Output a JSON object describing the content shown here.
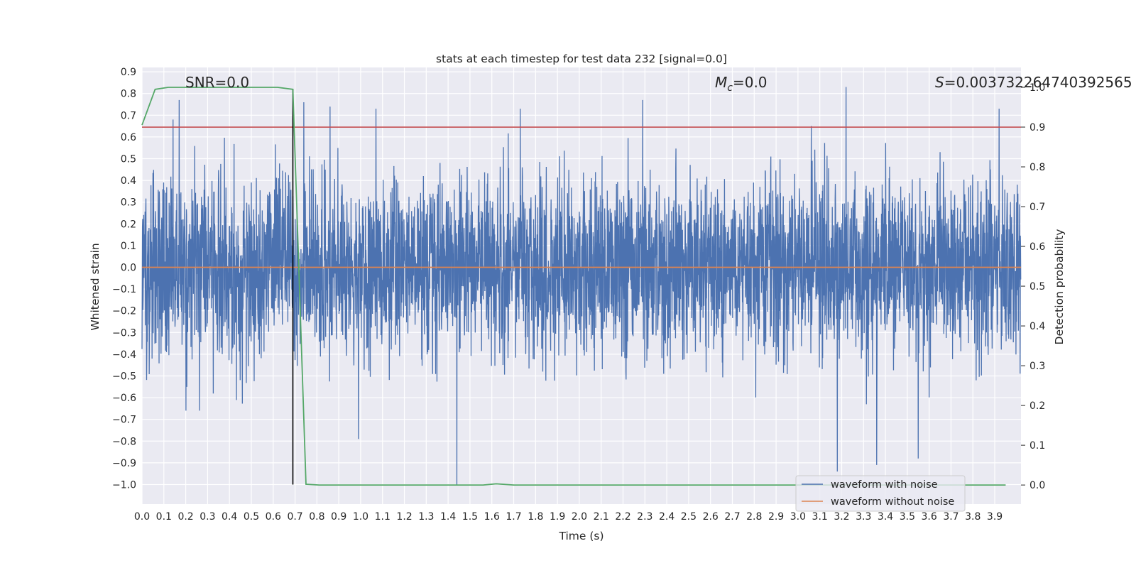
{
  "chart_data": {
    "type": "line",
    "title": "stats at each timestep for test data 232 [signal=0.0]",
    "xlabel": "Time (s)",
    "ylabel": "Whitened strain",
    "y2label": "Detection probability",
    "xlim": [
      0.0,
      4.02
    ],
    "ylim": [
      -1.09,
      0.92
    ],
    "y2lim": [
      -0.048,
      1.05
    ],
    "x_ticks": [
      "0.0",
      "0.1",
      "0.2",
      "0.3",
      "0.4",
      "0.5",
      "0.6",
      "0.7",
      "0.8",
      "0.9",
      "1.0",
      "1.1",
      "1.2",
      "1.3",
      "1.4",
      "1.5",
      "1.6",
      "1.7",
      "1.8",
      "1.9",
      "2.0",
      "2.1",
      "2.2",
      "2.3",
      "2.4",
      "2.5",
      "2.6",
      "2.7",
      "2.8",
      "2.9",
      "3.0",
      "3.1",
      "3.2",
      "3.3",
      "3.4",
      "3.5",
      "3.6",
      "3.7",
      "3.8",
      "3.9"
    ],
    "y_ticks": [
      "−1.0",
      "−0.9",
      "−0.8",
      "−0.7",
      "−0.6",
      "−0.5",
      "−0.4",
      "−0.3",
      "−0.2",
      "−0.1",
      "0.0",
      "0.1",
      "0.2",
      "0.3",
      "0.4",
      "0.5",
      "0.6",
      "0.7",
      "0.8",
      "0.9"
    ],
    "y2_ticks": [
      "0.0",
      "0.1",
      "0.2",
      "0.3",
      "0.4",
      "0.5",
      "0.6",
      "0.7",
      "0.8",
      "0.9",
      "1.0"
    ],
    "grid": true,
    "legend_position": "lower-right",
    "annotations": {
      "snr": "SNR=0.0",
      "mc_symbol": "M",
      "mc_sub": "c",
      "mc_value": "=0.0",
      "s_symbol": "S",
      "s_value": "=0.003732264740392565"
    },
    "series": [
      {
        "name": "waveform with noise",
        "color": "#4c72b0",
        "axis": "left",
        "sample_rate": 1000,
        "description_envelope": "dense noise between about -0.5 and +0.5 with spikes to about ±0.8",
        "highlighted_peaks": [
          {
            "x": 0.17,
            "y": 0.77
          },
          {
            "x": 0.74,
            "y": 0.76
          },
          {
            "x": 0.86,
            "y": 0.74
          },
          {
            "x": 1.07,
            "y": 0.73
          },
          {
            "x": 1.73,
            "y": 0.73
          },
          {
            "x": 2.29,
            "y": 0.77
          },
          {
            "x": 3.22,
            "y": 0.83
          },
          {
            "x": 3.92,
            "y": 0.73
          },
          {
            "x": 0.99,
            "y": -0.79
          },
          {
            "x": 1.44,
            "y": -1.0
          },
          {
            "x": 3.18,
            "y": -0.94
          },
          {
            "x": 3.36,
            "y": -0.91
          },
          {
            "x": 3.55,
            "y": -0.88
          }
        ]
      },
      {
        "name": "waveform without noise",
        "color": "#dd8452",
        "axis": "left",
        "x": [
          0.0,
          4.02
        ],
        "y": [
          0.0,
          0.0
        ]
      },
      {
        "name": "",
        "color": "#55a868",
        "axis": "right",
        "x": [
          0.0,
          0.06,
          0.12,
          0.2,
          0.3,
          0.4,
          0.5,
          0.62,
          0.69,
          0.75,
          0.81,
          0.9,
          1.0,
          1.1,
          1.2,
          1.3,
          1.4,
          1.5,
          1.56,
          1.62,
          1.7,
          1.8,
          2.0,
          2.5,
          3.0,
          3.5,
          3.95
        ],
        "y": [
          0.905,
          0.995,
          1.0,
          1.0,
          1.0,
          1.0,
          1.0,
          1.0,
          0.995,
          0.002,
          0.0,
          0.0,
          0.0,
          0.0,
          0.0,
          0.0,
          0.0,
          0.0,
          0.0,
          0.003,
          0.0,
          0.0,
          0.0,
          0.0,
          0.0,
          0.0,
          0.0
        ]
      }
    ],
    "threshold_line": {
      "color": "#c44e52",
      "axis": "right",
      "y": 0.9
    },
    "marker_line": {
      "color": "#000000",
      "axis": "left",
      "x": 0.69,
      "y_from": -1.0,
      "y_to": 0.82
    }
  }
}
